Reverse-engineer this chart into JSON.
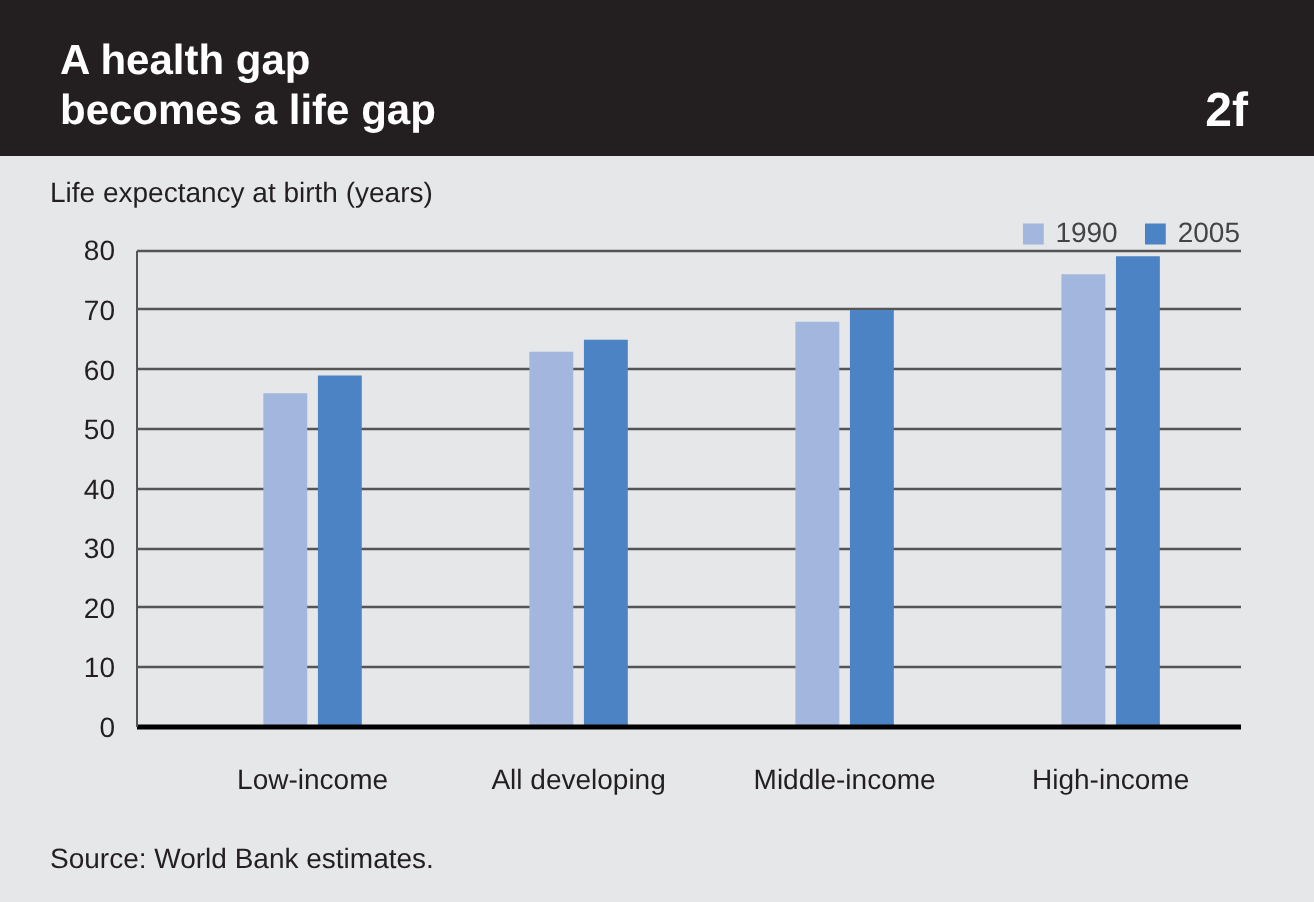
{
  "chart_data": {
    "type": "bar",
    "title": "A health gap\nbecomes a life gap",
    "ylabel": "Life expectancy at birth (years)",
    "categories": [
      "Low-income",
      "All developing",
      "Middle-income",
      "High-income"
    ],
    "series": [
      {
        "name": "1990",
        "color": "#a2b6de",
        "values": [
          56,
          63,
          68,
          76
        ]
      },
      {
        "name": "2005",
        "color": "#4c83c4",
        "values": [
          59,
          65,
          70,
          79
        ]
      }
    ],
    "ylim": [
      0,
      80
    ],
    "yticks": [
      0,
      10,
      20,
      30,
      40,
      50,
      60,
      70,
      80
    ],
    "grid": "y",
    "legend": "top right",
    "annotations": [
      "2f",
      "Source: World Bank estimates."
    ]
  }
}
